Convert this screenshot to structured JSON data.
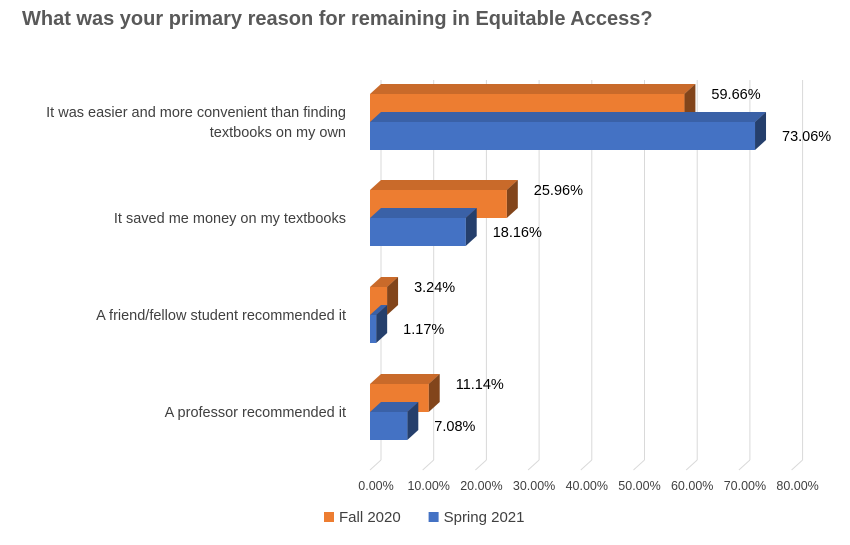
{
  "chart_data": {
    "type": "bar",
    "orientation": "horizontal",
    "style": "3d",
    "title": "What was your primary reason for remaining in Equitable Access?",
    "categories": [
      [
        "It was easier and more convenient than finding",
        "textbooks on my own"
      ],
      [
        "It saved me money on my textbooks"
      ],
      [
        "A friend/fellow student recommended it"
      ],
      [
        "A professor recommended it"
      ]
    ],
    "series": [
      {
        "name": "Fall 2020",
        "color": "#ED7D31",
        "values": [
          59.66,
          25.96,
          3.24,
          11.14
        ],
        "labels": [
          "59.66%",
          "25.96%",
          "3.24%",
          "11.14%"
        ]
      },
      {
        "name": "Spring 2021",
        "color": "#4472C4",
        "values": [
          73.06,
          18.16,
          1.17,
          7.08
        ],
        "labels": [
          "73.06%",
          "18.16%",
          "1.17%",
          "7.08%"
        ]
      }
    ],
    "xlim": [
      0,
      80
    ],
    "xticks": [
      "0.00%",
      "10.00%",
      "20.00%",
      "30.00%",
      "40.00%",
      "50.00%",
      "60.00%",
      "70.00%",
      "80.00%"
    ],
    "grid": true,
    "legend": "bottom"
  }
}
